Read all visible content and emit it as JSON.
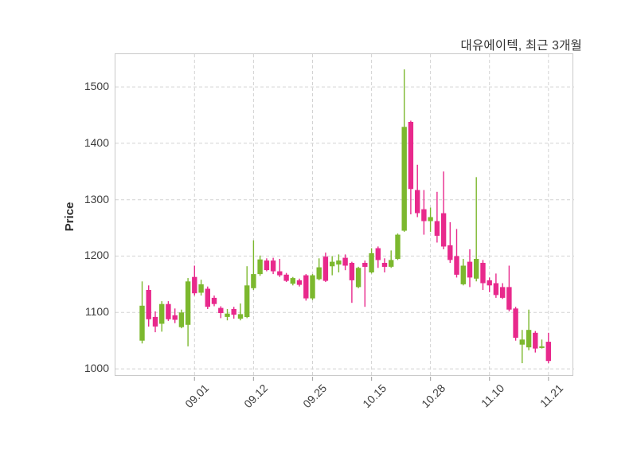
{
  "title": "대유에이텍, 최근 3개월",
  "colors": {
    "up": "#7cb82e",
    "down": "#e8298c",
    "grid": "#d3d3d3",
    "axis_border": "#c9c9c9",
    "tick_mark": "#adadad",
    "text": "#3d3d3d"
  },
  "chart_data": {
    "type": "candlestick",
    "title": "대유에이텍, 최근 3개월",
    "xlabel": "",
    "ylabel": "Price",
    "ylim": [
      986,
      1558
    ],
    "yticks": [
      1000,
      1100,
      1200,
      1300,
      1400,
      1500
    ],
    "xtick_labels": [
      "09.01",
      "09.12",
      "09.25",
      "10.15",
      "10.28",
      "11.10",
      "11.21"
    ],
    "xtick_indices": [
      8,
      17,
      26,
      35,
      44,
      53,
      62
    ],
    "grid": true,
    "legend": "none",
    "series_note": "candles as [open, high, low, close]; up=green, down=pink",
    "candles": [
      [
        1050,
        1155,
        1045,
        1112
      ],
      [
        1140,
        1148,
        1075,
        1088
      ],
      [
        1092,
        1102,
        1065,
        1075
      ],
      [
        1080,
        1120,
        1066,
        1115
      ],
      [
        1115,
        1120,
        1085,
        1088
      ],
      [
        1095,
        1107,
        1081,
        1087
      ],
      [
        1074,
        1105,
        1072,
        1100
      ],
      [
        1078,
        1161,
        1040,
        1155
      ],
      [
        1163,
        1183,
        1130,
        1134
      ],
      [
        1135,
        1158,
        1130,
        1150
      ],
      [
        1142,
        1146,
        1106,
        1110
      ],
      [
        1126,
        1130,
        1111,
        1115
      ],
      [
        1108,
        1111,
        1090,
        1099
      ],
      [
        1092,
        1106,
        1086,
        1098
      ],
      [
        1106,
        1110,
        1089,
        1096
      ],
      [
        1089,
        1116,
        1086,
        1097
      ],
      [
        1092,
        1182,
        1090,
        1148
      ],
      [
        1143,
        1228,
        1140,
        1168
      ],
      [
        1168,
        1201,
        1165,
        1194
      ],
      [
        1192,
        1196,
        1173,
        1175
      ],
      [
        1192,
        1197,
        1168,
        1173
      ],
      [
        1173,
        1195,
        1163,
        1166
      ],
      [
        1167,
        1170,
        1154,
        1156
      ],
      [
        1151,
        1163,
        1148,
        1161
      ],
      [
        1157,
        1160,
        1146,
        1149
      ],
      [
        1166,
        1168,
        1121,
        1125
      ],
      [
        1125,
        1168,
        1122,
        1166
      ],
      [
        1159,
        1196,
        1157,
        1180
      ],
      [
        1199,
        1206,
        1154,
        1156
      ],
      [
        1182,
        1200,
        1166,
        1190
      ],
      [
        1185,
        1203,
        1171,
        1192
      ],
      [
        1197,
        1203,
        1175,
        1183
      ],
      [
        1188,
        1190,
        1117,
        1157
      ],
      [
        1145,
        1181,
        1143,
        1179
      ],
      [
        1188,
        1192,
        1110,
        1181
      ],
      [
        1171,
        1214,
        1169,
        1205
      ],
      [
        1214,
        1217,
        1179,
        1193
      ],
      [
        1188,
        1196,
        1171,
        1181
      ],
      [
        1181,
        1210,
        1179,
        1193
      ],
      [
        1195,
        1240,
        1193,
        1238
      ],
      [
        1245,
        1531,
        1243,
        1429
      ],
      [
        1438,
        1440,
        1274,
        1319
      ],
      [
        1317,
        1362,
        1269,
        1276
      ],
      [
        1283,
        1317,
        1238,
        1262
      ],
      [
        1262,
        1286,
        1243,
        1269
      ],
      [
        1262,
        1314,
        1224,
        1236
      ],
      [
        1276,
        1350,
        1212,
        1217
      ],
      [
        1219,
        1260,
        1188,
        1193
      ],
      [
        1200,
        1248,
        1162,
        1167
      ],
      [
        1150,
        1195,
        1148,
        1183
      ],
      [
        1190,
        1212,
        1145,
        1162
      ],
      [
        1160,
        1340,
        1155,
        1195
      ],
      [
        1188,
        1193,
        1140,
        1152
      ],
      [
        1157,
        1162,
        1136,
        1148
      ],
      [
        1152,
        1169,
        1126,
        1131
      ],
      [
        1145,
        1152,
        1124,
        1126
      ],
      [
        1145,
        1183,
        1102,
        1105
      ],
      [
        1107,
        1110,
        1050,
        1055
      ],
      [
        1043,
        1069,
        1010,
        1052
      ],
      [
        1038,
        1105,
        1033,
        1069
      ],
      [
        1064,
        1067,
        1029,
        1036
      ],
      [
        1037,
        1052,
        1036,
        1040
      ],
      [
        1048,
        1064,
        1010,
        1014
      ]
    ]
  }
}
